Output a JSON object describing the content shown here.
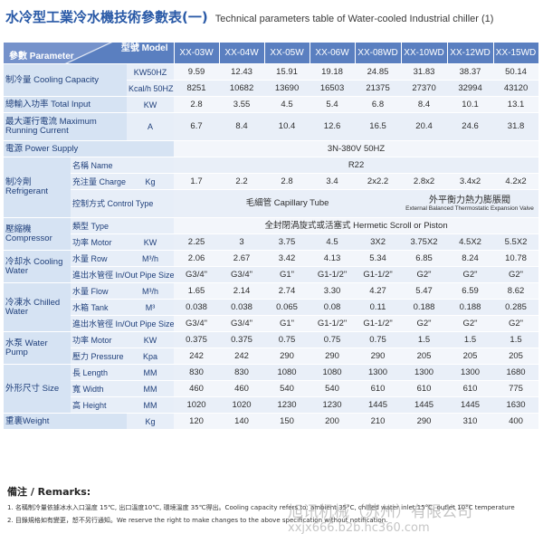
{
  "title": {
    "zh": "水冷型工業冷水機技術參數表(一)",
    "en": "Technical parameters table of Water-cooled Industrial chiller (1)"
  },
  "header": {
    "param": "參數 Parameter",
    "model": "型號 Model",
    "models": [
      "XX-03W",
      "XX-04W",
      "XX-05W",
      "XX-06W",
      "XX-08WD",
      "XX-10WD",
      "XX-12WD",
      "XX-15WD"
    ]
  },
  "rows": {
    "cooling_capacity": {
      "cat": "制冷量 Cooling Capacity",
      "u1": "KW50HZ",
      "v1": [
        "9.59",
        "12.43",
        "15.91",
        "19.18",
        "24.85",
        "31.83",
        "38.37",
        "50.14"
      ],
      "u2": "Kcal/h 50HZ",
      "v2": [
        "8251",
        "10682",
        "13690",
        "16503",
        "21375",
        "27370",
        "32994",
        "43120"
      ]
    },
    "total_input": {
      "cat": "總輸入功率 Total Input",
      "unit": "KW",
      "v": [
        "2.8",
        "3.55",
        "4.5",
        "5.4",
        "6.8",
        "8.4",
        "10.1",
        "13.1"
      ]
    },
    "max_current": {
      "cat": "最大運行電流 Maximum Running Current",
      "unit": "A",
      "v": [
        "6.7",
        "8.4",
        "10.4",
        "12.6",
        "16.5",
        "20.4",
        "24.6",
        "31.8"
      ]
    },
    "power_supply": {
      "cat": "電源 Power Supply",
      "value": "3N-380V 50HZ"
    },
    "refrigerant": {
      "cat": "制冷劑 Refrigerant",
      "name_label": "名稱 Name",
      "name_value": "R22",
      "charge_label": "充注量 Charge",
      "charge_unit": "Kg",
      "charge": [
        "1.7",
        "2.2",
        "2.8",
        "3.4",
        "2x2.2",
        "2.8x2",
        "3.4x2",
        "4.2x2"
      ],
      "control_label": "控制方式 Control Type",
      "control_a": "毛細管 Capillary Tube",
      "control_b_zh": "外平衡力熱力膨脹閥",
      "control_b_en": "External Balanced Thermostatic Expansion Valve"
    },
    "compressor": {
      "cat": "壓縮機 Compressor",
      "type_label": "類型 Type",
      "type_value": "全封閉渦旋式或活塞式 Hermetic Scroll or Piston",
      "motor_label": "功率 Motor",
      "motor_unit": "KW",
      "motor": [
        "2.25",
        "3",
        "3.75",
        "4.5",
        "3X2",
        "3.75X2",
        "4.5X2",
        "5.5X2"
      ]
    },
    "cooling_water": {
      "cat": "冷却水 Cooling Water",
      "row_label": "水量 Row",
      "row_unit": "M³/h",
      "row": [
        "2.06",
        "2.67",
        "3.42",
        "4.13",
        "5.34",
        "6.85",
        "8.24",
        "10.78"
      ],
      "pipe_label": "進出水管徑 In/Out Pipe Size",
      "pipe": [
        "G3/4\"",
        "G3/4\"",
        "G1\"",
        "G1-1/2\"",
        "G1-1/2\"",
        "G2\"",
        "G2\"",
        "G2\""
      ]
    },
    "chilled_water": {
      "cat": "冷凍水 Chilled Water",
      "flow_label": "水量 Flow",
      "flow_unit": "M³/h",
      "flow": [
        "1.65",
        "2.14",
        "2.74",
        "3.30",
        "4.27",
        "5.47",
        "6.59",
        "8.62"
      ],
      "tank_label": "水箱 Tank",
      "tank_unit": "M³",
      "tank": [
        "0.038",
        "0.038",
        "0.065",
        "0.08",
        "0.11",
        "0.188",
        "0.188",
        "0.285"
      ],
      "pipe_label": "進出水管徑 In/Out Pipe Size",
      "pipe": [
        "G3/4\"",
        "G3/4\"",
        "G1\"",
        "G1-1/2\"",
        "G1-1/2\"",
        "G2\"",
        "G2\"",
        "G2\""
      ]
    },
    "water_pump": {
      "cat": "水泵 Water Pump",
      "motor_label": "功率 Motor",
      "motor_unit": "KW",
      "motor": [
        "0.375",
        "0.375",
        "0.75",
        "0.75",
        "0.75",
        "1.5",
        "1.5",
        "1.5"
      ],
      "pressure_label": "壓力 Pressure",
      "pressure_unit": "Kpa",
      "pressure": [
        "242",
        "242",
        "290",
        "290",
        "290",
        "205",
        "205",
        "205"
      ]
    },
    "size": {
      "cat": "外形尺寸 Size",
      "length_label": "長 Length",
      "width_label": "寬 Width",
      "height_label": "高 Height",
      "unit": "MM",
      "length": [
        "830",
        "830",
        "1080",
        "1080",
        "1300",
        "1300",
        "1300",
        "1680"
      ],
      "width": [
        "460",
        "460",
        "540",
        "540",
        "610",
        "610",
        "610",
        "775"
      ],
      "height": [
        "1020",
        "1020",
        "1230",
        "1230",
        "1445",
        "1445",
        "1445",
        "1630"
      ]
    },
    "weight": {
      "cat": "重裏Weight",
      "unit": "Kg",
      "v": [
        "120",
        "140",
        "150",
        "200",
        "210",
        "290",
        "310",
        "400"
      ]
    }
  },
  "remarks": {
    "title": "備注 / Remarks:",
    "note1": "1. 名稱制冷量依據冰水入口溫度 15℃, 出口溫度10℃, 環境溫度 35℃得出。Cooling capacity refers to: ambient 35°C, chilled water inlet 15°C, outlet 10°C temperature",
    "note2": "2. 目錄規格如有變更，恕不另行通知。We reserve the right to make changes to the above specification without notification."
  },
  "watermark": {
    "company": "旭讯机械（苏州）有限公司",
    "url": "xxjx666.b2b.hc360.com"
  }
}
